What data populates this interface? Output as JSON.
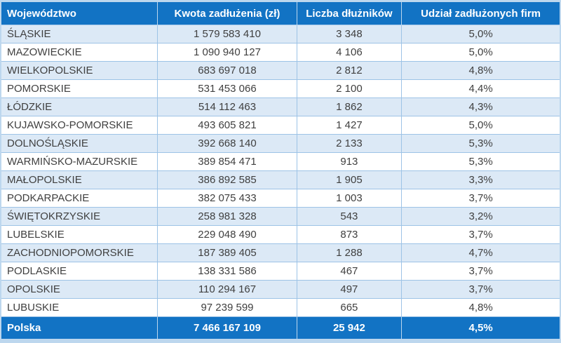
{
  "chart_data": {
    "type": "table",
    "columns": [
      "Województwo",
      "Kwota zadłużenia (zł)",
      "Liczba dłużników",
      "Udział zadłużonych firm"
    ],
    "rows": [
      [
        "ŚLĄSKIE",
        "1 579 583 410",
        "3 348",
        "5,0%"
      ],
      [
        "MAZOWIECKIE",
        "1 090 940 127",
        "4 106",
        "5,0%"
      ],
      [
        "WIELKOPOLSKIE",
        "683 697 018",
        "2 812",
        "4,8%"
      ],
      [
        "POMORSKIE",
        "531 453 066",
        "2 100",
        "4,4%"
      ],
      [
        "ŁÓDZKIE",
        "514 112 463",
        "1 862",
        "4,3%"
      ],
      [
        "KUJAWSKO-POMORSKIE",
        "493 605 821",
        "1 427",
        "5,0%"
      ],
      [
        "DOLNOŚLĄSKIE",
        "392 668 140",
        "2 133",
        "5,3%"
      ],
      [
        "WARMIŃSKO-MAZURSKIE",
        "389 854 471",
        "913",
        "5,3%"
      ],
      [
        "MAŁOPOLSKIE",
        "386 892 585",
        "1 905",
        "3,3%"
      ],
      [
        "PODKARPACKIE",
        "382 075 433",
        "1 003",
        "3,7%"
      ],
      [
        "ŚWIĘTOKRZYSKIE",
        "258 981 328",
        "543",
        "3,2%"
      ],
      [
        "LUBELSKIE",
        "229 048 490",
        "873",
        "3,7%"
      ],
      [
        "ZACHODNIOPOMORSKIE",
        "187 389 405",
        "1 288",
        "4,7%"
      ],
      [
        "PODLASKIE",
        "138 331 586",
        "467",
        "3,7%"
      ],
      [
        "OPOLSKIE",
        "110 294 167",
        "497",
        "3,7%"
      ],
      [
        "LUBUSKIE",
        "97 239 599",
        "665",
        "4,8%"
      ]
    ],
    "footer": [
      "Polska",
      "7 466 167 109",
      "25 942",
      "4,5%"
    ],
    "layout_hints": {
      "alternate_row_color": "#DCE9F6",
      "header_footer_color": "#1273C4",
      "border_color": "#9DC3E6",
      "outer_frame_color": "#BDD7EE",
      "body_text_color": "#3F3F3F"
    }
  }
}
